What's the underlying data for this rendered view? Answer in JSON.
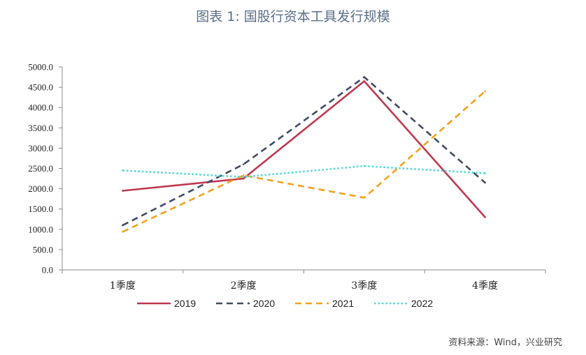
{
  "title": "图表 1:  国股行资本工具发行规模",
  "source": "资料来源：Wind，兴业研究",
  "chart_data": {
    "type": "line",
    "categories": [
      "1季度",
      "2季度",
      "3季度",
      "4季度"
    ],
    "ylim": [
      0,
      5000
    ],
    "yticks": [
      "0.0",
      "500.0",
      "1000.0",
      "1500.0",
      "2000.0",
      "2500.0",
      "3000.0",
      "3500.0",
      "4000.0",
      "4500.0",
      "5000.0"
    ],
    "series": [
      {
        "name": "2019",
        "values": [
          1950,
          2250,
          4650,
          1300
        ],
        "color": "#c0384e",
        "dash": "solid"
      },
      {
        "name": "2020",
        "values": [
          1100,
          2600,
          4750,
          2150
        ],
        "color": "#3f4b66",
        "dash": "dash"
      },
      {
        "name": "2021",
        "values": [
          940,
          2330,
          1780,
          4400
        ],
        "color": "#f0a21e",
        "dash": "dash"
      },
      {
        "name": "2022",
        "values": [
          2450,
          2290,
          2560,
          2380
        ],
        "color": "#4fd9d6",
        "dash": "dot"
      }
    ],
    "legend": "bottom"
  }
}
